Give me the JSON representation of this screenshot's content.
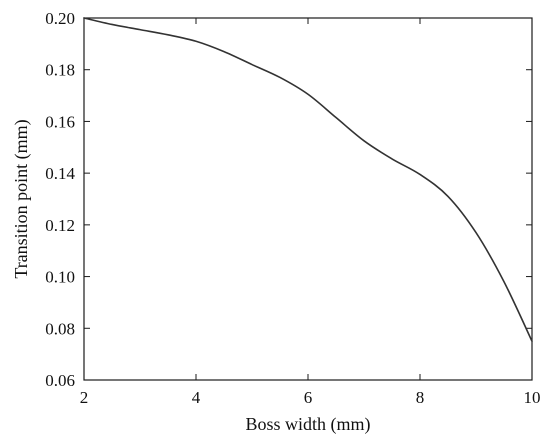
{
  "chart_data": {
    "type": "line",
    "title": "",
    "xlabel": "Boss width (mm)",
    "ylabel": "Transition point (mm)",
    "xlim": [
      2,
      10
    ],
    "ylim": [
      0.06,
      0.2
    ],
    "xticks": [
      2,
      4,
      6,
      8,
      10
    ],
    "yticks": [
      0.06,
      0.08,
      0.1,
      0.12,
      0.14,
      0.16,
      0.18,
      0.2
    ],
    "xtick_labels": [
      "2",
      "4",
      "6",
      "8",
      "10"
    ],
    "ytick_labels": [
      "0.06",
      "0.08",
      "0.10",
      "0.12",
      "0.14",
      "0.16",
      "0.18",
      "0.20"
    ],
    "grid": false,
    "legend": "none",
    "line_color": "#333333",
    "series": [
      {
        "x": [
          2.0,
          2.5,
          3.0,
          3.5,
          4.0,
          4.5,
          5.0,
          5.5,
          6.0,
          6.5,
          7.0,
          7.5,
          8.0,
          8.5,
          9.0,
          9.5,
          10.0
        ],
        "values": [
          0.2,
          0.1975,
          0.1955,
          0.1935,
          0.191,
          0.187,
          0.182,
          0.177,
          0.1705,
          0.1615,
          0.1525,
          0.1455,
          0.1395,
          0.131,
          0.117,
          0.098,
          0.075
        ]
      }
    ]
  }
}
